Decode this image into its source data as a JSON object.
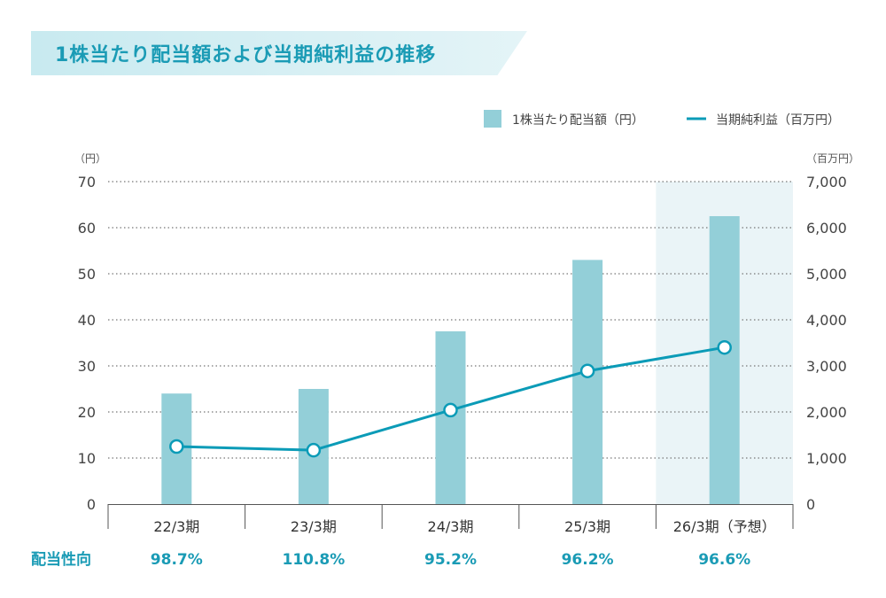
{
  "chart_data": {
    "type": "bar+line",
    "title": "1株当たり配当額および当期純利益の推移",
    "categories": [
      "22/3期",
      "23/3期",
      "24/3期",
      "25/3期",
      "26/3期（予想）"
    ],
    "forecast_category": "26/3期（予想）",
    "series": [
      {
        "name": "1株当たり配当額（円）",
        "type": "bar",
        "axis": "left",
        "color": "#93cfd8",
        "values": [
          24.0,
          25.0,
          37.5,
          53.0,
          62.5
        ]
      },
      {
        "name": "当期純利益（百万円）",
        "type": "line",
        "axis": "right",
        "color": "#0b9bb7",
        "values": [
          1250,
          1170,
          2040,
          2890,
          3400
        ]
      }
    ],
    "left_axis": {
      "unit": "（円）",
      "range": [
        0,
        70
      ],
      "ticks": [
        "0",
        "10",
        "20",
        "30",
        "40",
        "50",
        "60",
        "70"
      ]
    },
    "right_axis": {
      "unit": "（百万円）",
      "range": [
        0,
        7000
      ],
      "ticks": [
        "0",
        "1,000",
        "2,000",
        "3,000",
        "4,000",
        "5,000",
        "6,000",
        "7,000"
      ]
    },
    "grid": "dotted horizontal",
    "legend_position": "top-right",
    "payout_ratio": {
      "label": "配当性向",
      "values": [
        "98.7%",
        "110.8%",
        "95.2%",
        "96.2%",
        "96.6%"
      ]
    }
  }
}
